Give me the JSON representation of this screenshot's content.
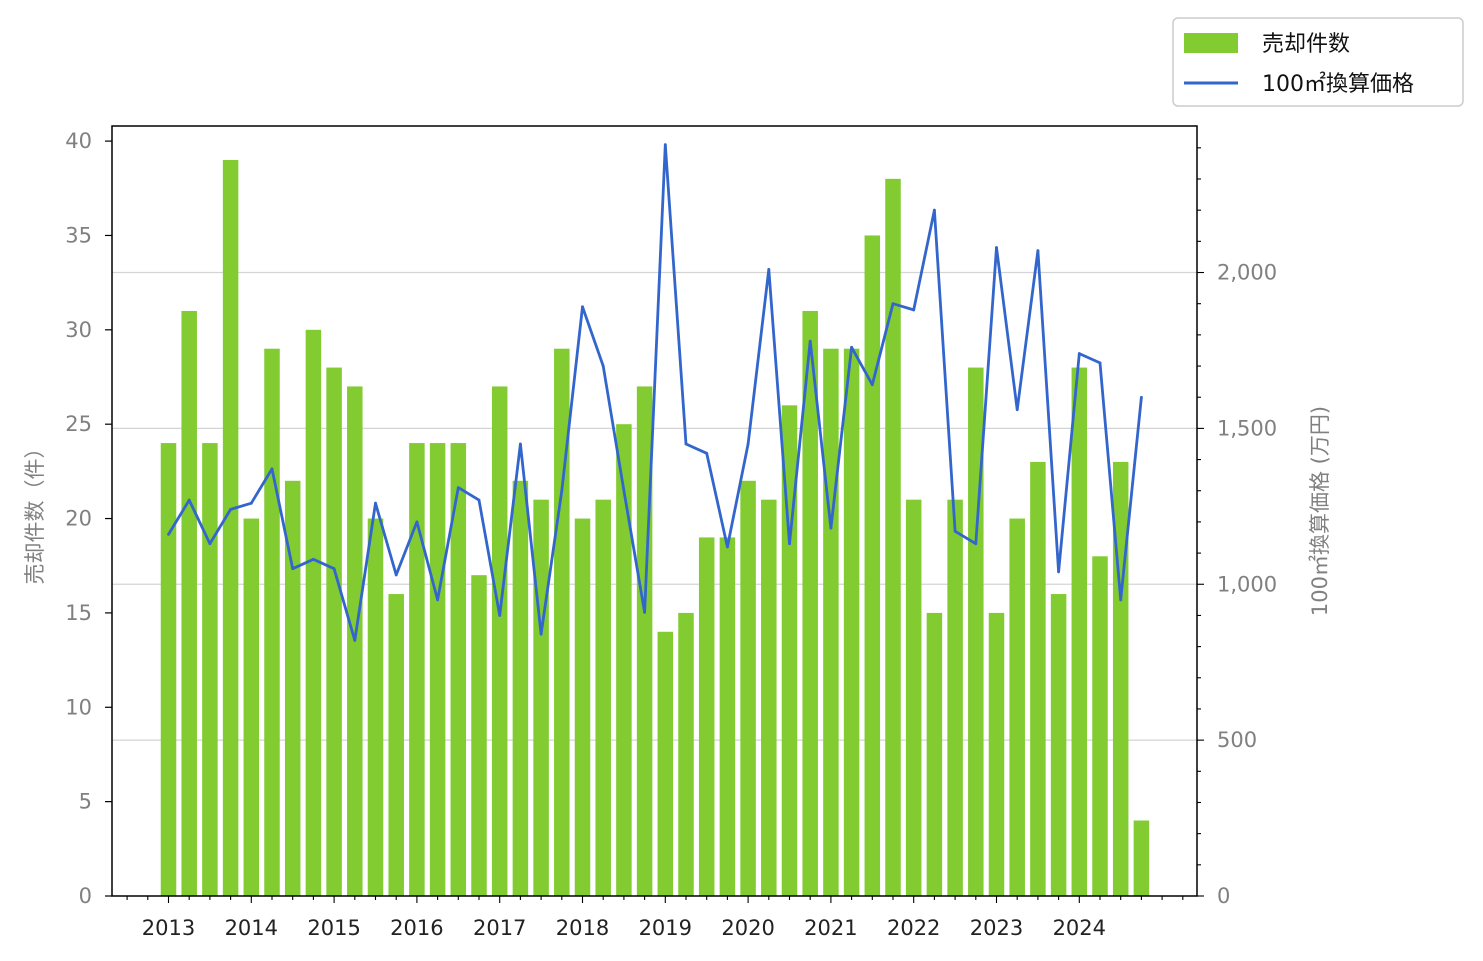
{
  "chart_data": {
    "type": "bar+line",
    "x": [
      "2013-Q1",
      "2013-Q2",
      "2013-Q3",
      "2013-Q4",
      "2014-Q1",
      "2014-Q2",
      "2014-Q3",
      "2014-Q4",
      "2015-Q1",
      "2015-Q2",
      "2015-Q3",
      "2015-Q4",
      "2016-Q1",
      "2016-Q2",
      "2016-Q3",
      "2016-Q4",
      "2017-Q1",
      "2017-Q2",
      "2017-Q3",
      "2017-Q4",
      "2018-Q1",
      "2018-Q2",
      "2018-Q3",
      "2018-Q4",
      "2019-Q1",
      "2019-Q2",
      "2019-Q3",
      "2019-Q4",
      "2020-Q1",
      "2020-Q2",
      "2020-Q3",
      "2020-Q4",
      "2021-Q1",
      "2021-Q2",
      "2021-Q3",
      "2021-Q4",
      "2022-Q1",
      "2022-Q2",
      "2022-Q3",
      "2022-Q4",
      "2023-Q1",
      "2023-Q2",
      "2023-Q3",
      "2023-Q4",
      "2024-Q1",
      "2024-Q2",
      "2024-Q3",
      "2024-Q4"
    ],
    "xtick_labels": [
      "2013",
      "2014",
      "2015",
      "2016",
      "2017",
      "2018",
      "2019",
      "2020",
      "2021",
      "2022",
      "2023",
      "2024"
    ],
    "series": [
      {
        "name": "売却件数",
        "type": "bar",
        "axis": "left",
        "color": "#82cc32",
        "values": [
          24,
          31,
          24,
          39,
          20,
          29,
          22,
          30,
          28,
          27,
          20,
          16,
          24,
          24,
          24,
          17,
          27,
          22,
          21,
          29,
          20,
          21,
          25,
          27,
          14,
          15,
          19,
          19,
          22,
          21,
          26,
          31,
          29,
          29,
          35,
          38,
          21,
          15,
          21,
          28,
          15,
          20,
          23,
          16,
          28,
          18,
          23,
          4
        ]
      },
      {
        "name": "100㎡換算価格",
        "type": "line",
        "axis": "right",
        "color": "#3366cc",
        "values": [
          1160,
          1270,
          1130,
          1240,
          1260,
          1370,
          1050,
          1080,
          1050,
          820,
          1260,
          1030,
          1200,
          950,
          1310,
          1270,
          900,
          1450,
          840,
          1300,
          1890,
          1700,
          1300,
          910,
          2410,
          1450,
          1420,
          1120,
          1450,
          2010,
          1130,
          1780,
          1180,
          1760,
          1640,
          1900,
          1880,
          2200,
          1170,
          1130,
          2080,
          1560,
          2070,
          1040,
          1740,
          1710,
          950,
          1600
        ]
      }
    ],
    "left_axis": {
      "label": "売却件数（件）",
      "ylim": [
        0,
        40.8
      ],
      "ticks": [
        0,
        5,
        10,
        15,
        20,
        25,
        30,
        35,
        40
      ],
      "tick_labels": [
        "0",
        "5",
        "10",
        "15",
        "20",
        "25",
        "30",
        "35",
        "40"
      ]
    },
    "right_axis": {
      "label": "100㎡換算価格 (万円)",
      "ylim": [
        0,
        2470
      ],
      "ticks": [
        0,
        500,
        1000,
        1500,
        2000
      ],
      "tick_labels": [
        "0",
        "500",
        "1,000",
        "1,500",
        "2,000"
      ]
    },
    "grid": "horizontal-right-axis",
    "legend_position": "top-right-outside"
  },
  "legend": {
    "bar_label": "売却件数",
    "line_label": "100㎡換算価格"
  }
}
